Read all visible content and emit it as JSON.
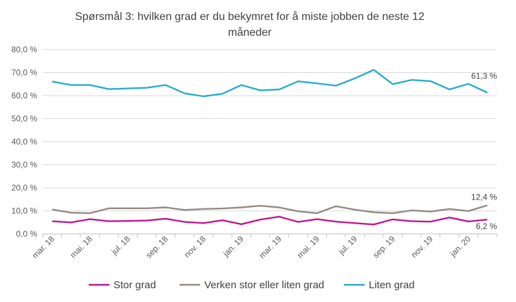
{
  "chart_data": {
    "type": "line",
    "title_lines": [
      "Spørsmål 3: hvilken  grad er du bekymret  for å miste jobben de neste 12",
      "måneder"
    ],
    "xlabel": "",
    "ylabel": "",
    "ylim": [
      0,
      80
    ],
    "y_ticks": [
      "0,0 %",
      "10,0 %",
      "20,0 %",
      "30,0 %",
      "40,0 %",
      "50,0 %",
      "60,0 %",
      "70,0 %",
      "80,0 %"
    ],
    "x_tick_labels": [
      "mar. 18",
      "mai. 18",
      "jul. 18",
      "sep. 18",
      "nov. 18",
      "jan. 19",
      "mar. 19",
      "mai. 19",
      "jul. 19",
      "sep. 19",
      "nov. 19",
      "jan. 20"
    ],
    "grid": true,
    "legend_position": "bottom",
    "series": [
      {
        "name": "Stor grad",
        "color": "#c2168c",
        "values": [
          5.5,
          5.0,
          6.4,
          5.5,
          5.6,
          5.8,
          6.6,
          5.2,
          4.7,
          5.9,
          4.2,
          6.2,
          7.5,
          5.2,
          6.4,
          5.3,
          4.7,
          4.1,
          6.3,
          5.5,
          5.3,
          7.1,
          5.4,
          6.2
        ],
        "end_label": "6,2 %"
      },
      {
        "name": "Verken stor eller liten grad",
        "color": "#948a84",
        "values": [
          10.6,
          9.2,
          9.0,
          11.1,
          11.1,
          11.1,
          11.5,
          10.4,
          10.8,
          11.0,
          11.5,
          12.2,
          11.5,
          9.8,
          9.0,
          12.0,
          10.5,
          9.4,
          9.0,
          10.2,
          9.7,
          10.8,
          9.9,
          12.4
        ],
        "end_label": "12,4 %"
      },
      {
        "name": "Liten grad",
        "color": "#2aaccb",
        "values": [
          66.1,
          64.6,
          64.6,
          62.8,
          63.1,
          63.4,
          64.6,
          61.0,
          59.7,
          60.8,
          64.6,
          62.3,
          62.7,
          66.2,
          65.3,
          64.3,
          67.5,
          71.2,
          65.0,
          66.8,
          66.3,
          62.7,
          65.1,
          61.3
        ],
        "end_label": "61,3 %"
      }
    ]
  }
}
